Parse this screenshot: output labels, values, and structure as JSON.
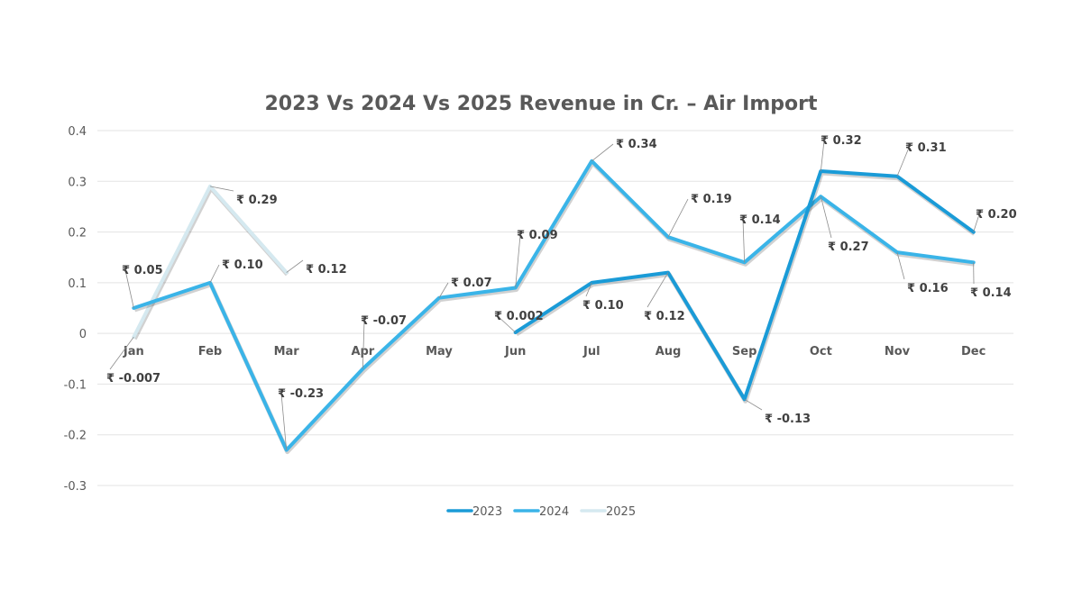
{
  "chart_data": {
    "type": "line",
    "title": "2023 Vs 2024 Vs 2025 Revenue in Cr. – Air Import",
    "xlabel": "",
    "ylabel": "",
    "categories": [
      "Jan",
      "Feb",
      "Mar",
      "Apr",
      "May",
      "Jun",
      "Jul",
      "Aug",
      "Sep",
      "Oct",
      "Nov",
      "Dec"
    ],
    "ylim": [
      -0.3,
      0.4
    ],
    "yticks": [
      "0.4",
      "0.3",
      "0.2",
      "0.1",
      "0",
      "-0.1",
      "-0.2",
      "-0.3"
    ],
    "ytick_values": [
      0.4,
      0.3,
      0.2,
      0.1,
      0,
      -0.1,
      -0.2,
      -0.3
    ],
    "grid": true,
    "legend_position": "bottom",
    "series": [
      {
        "name": "2023",
        "color": "#1a9bd7",
        "values": [
          null,
          null,
          null,
          null,
          null,
          0.002,
          0.1,
          0.12,
          -0.13,
          0.32,
          0.31,
          0.2
        ],
        "labels": [
          null,
          null,
          null,
          null,
          null,
          "₹ 0.002",
          "₹ 0.10",
          "₹ 0.12",
          "₹ -0.13",
          "₹ 0.32",
          "₹ 0.31",
          "₹ 0.20"
        ]
      },
      {
        "name": "2024",
        "color": "#3ab4e8",
        "values": [
          0.05,
          0.1,
          -0.23,
          -0.07,
          0.07,
          0.09,
          0.34,
          0.19,
          0.14,
          0.27,
          0.16,
          0.14
        ],
        "labels": [
          "₹ 0.05",
          "₹ 0.10",
          "₹ -0.23",
          "₹ -0.07",
          "₹ 0.07",
          "₹ 0.09",
          "₹ 0.34",
          "₹ 0.19",
          "₹ 0.14",
          "₹ 0.27",
          "₹ 0.16",
          "₹ 0.14"
        ]
      },
      {
        "name": "2025",
        "color": "#d5e9f0",
        "values": [
          -0.007,
          0.29,
          0.12,
          null,
          null,
          null,
          null,
          null,
          null,
          null,
          null,
          null
        ],
        "labels": [
          "₹ -0.007",
          "₹ 0.29",
          "₹ 0.12",
          null,
          null,
          null,
          null,
          null,
          null,
          null,
          null,
          null
        ]
      }
    ]
  }
}
